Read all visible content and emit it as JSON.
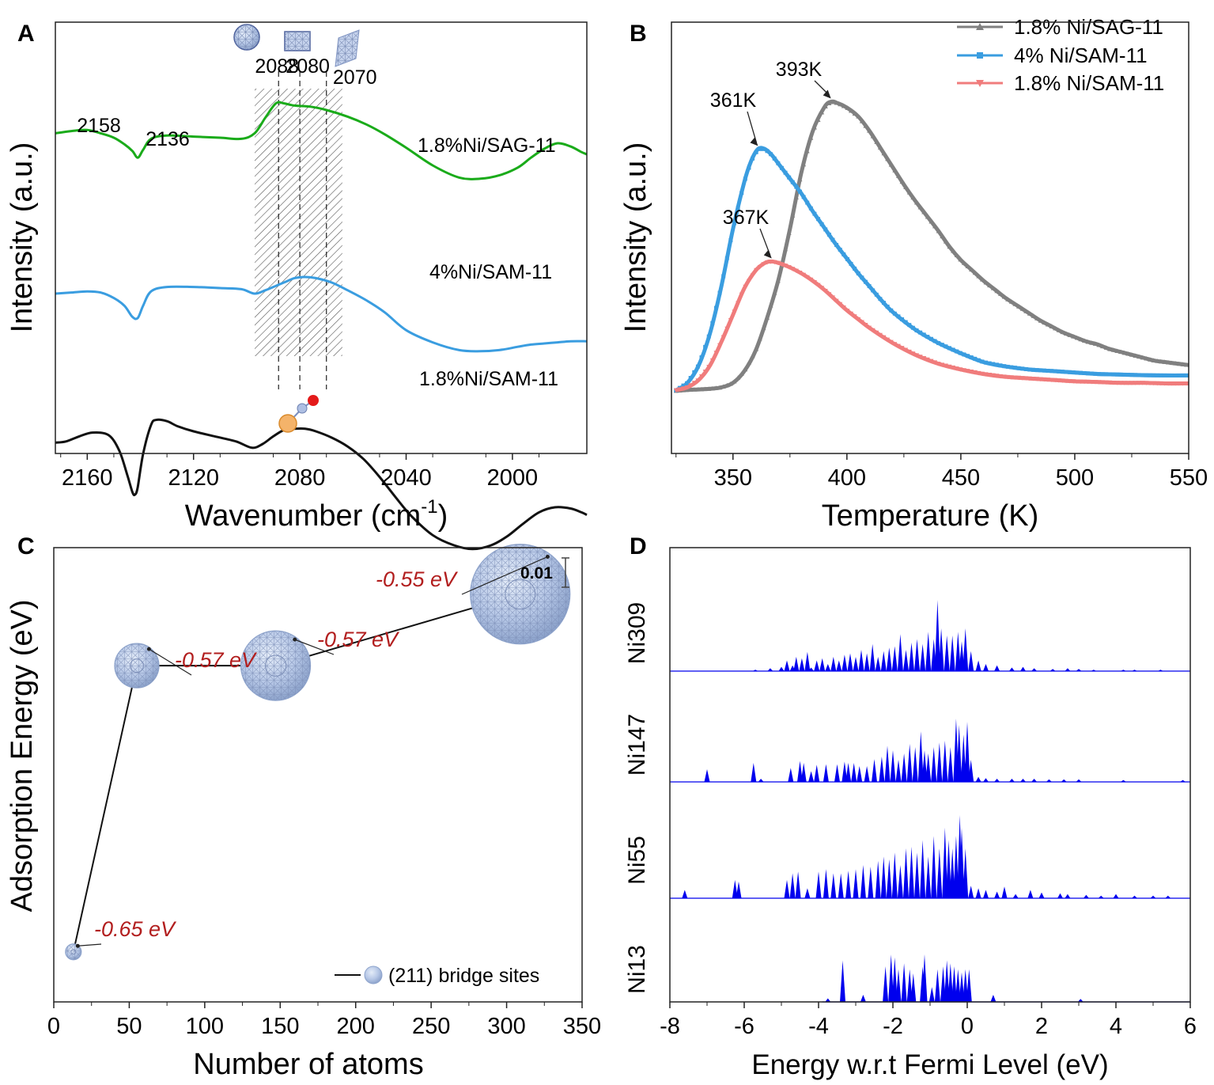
{
  "chart_data": [
    {
      "panel": "A",
      "type": "line",
      "xlabel": "Wavenumber (cm",
      "xlabel_sup": "-1",
      "xlabel_tail": ")",
      "ylabel": "Intensity (a.u.)",
      "xlim": [
        2172,
        1972
      ],
      "x_reversed": true,
      "xticks": [
        2160,
        2120,
        2080,
        2040,
        2000
      ],
      "series": [
        {
          "name": "1.8%Ni/SAG-11",
          "color": "#1aab1a",
          "x": [
            2172,
            2166,
            2160,
            2155,
            2150,
            2146,
            2143,
            2141,
            2139,
            2136,
            2130,
            2120,
            2110,
            2102,
            2097,
            2093,
            2089,
            2086,
            2082,
            2076,
            2070,
            2062,
            2055,
            2048,
            2040,
            2030,
            2020,
            2012,
            2005,
            1998,
            1993,
            1988,
            1983,
            1978,
            1974,
            1972
          ],
          "y": [
            0.64,
            0.66,
            0.67,
            0.64,
            0.6,
            0.54,
            0.48,
            0.42,
            0.49,
            0.59,
            0.62,
            0.61,
            0.6,
            0.59,
            0.64,
            0.78,
            0.91,
            0.91,
            0.89,
            0.88,
            0.85,
            0.79,
            0.72,
            0.63,
            0.51,
            0.35,
            0.24,
            0.23,
            0.26,
            0.33,
            0.42,
            0.5,
            0.55,
            0.52,
            0.47,
            0.45
          ]
        },
        {
          "name": "4%Ni/SAM-11",
          "color": "#3a9de0",
          "x": [
            2172,
            2166,
            2160,
            2155,
            2150,
            2146,
            2143,
            2141,
            2139,
            2136,
            2130,
            2120,
            2110,
            2102,
            2097,
            2093,
            2089,
            2085,
            2082,
            2078,
            2074,
            2068,
            2062,
            2055,
            2048,
            2040,
            2030,
            2020,
            2012,
            2005,
            1998,
            1993,
            1988,
            1983,
            1978,
            1972
          ],
          "y": [
            0.35,
            0.36,
            0.37,
            0.36,
            0.31,
            0.24,
            0.14,
            0.13,
            0.24,
            0.37,
            0.41,
            0.41,
            0.4,
            0.39,
            0.35,
            0.38,
            0.42,
            0.46,
            0.49,
            0.5,
            0.49,
            0.45,
            0.38,
            0.29,
            0.18,
            0.02,
            -0.09,
            -0.16,
            -0.17,
            -0.16,
            -0.13,
            -0.11,
            -0.1,
            -0.09,
            -0.08,
            -0.08
          ]
        },
        {
          "name": "1.8%Ni/SAM-11",
          "color": "#111111",
          "x": [
            2172,
            2168,
            2163,
            2158,
            2152,
            2148,
            2145,
            2143,
            2142,
            2141,
            2139,
            2136,
            2134,
            2130,
            2126,
            2120,
            2112,
            2104,
            2098,
            2094,
            2090,
            2086,
            2082,
            2078,
            2074,
            2068,
            2062,
            2056,
            2050,
            2044,
            2038,
            2030,
            2022,
            2015,
            2008,
            2002,
            1996,
            1990,
            1984,
            1978,
            1974,
            1972
          ],
          "y": [
            -0.09,
            -0.08,
            -0.04,
            -0.01,
            -0.03,
            -0.15,
            -0.34,
            -0.48,
            -0.5,
            -0.44,
            -0.18,
            0.05,
            0.09,
            0.08,
            0.04,
            0.0,
            -0.04,
            -0.08,
            -0.13,
            -0.1,
            -0.04,
            0.01,
            0.02,
            0.02,
            0.0,
            -0.05,
            -0.12,
            -0.22,
            -0.36,
            -0.52,
            -0.67,
            -0.82,
            -0.9,
            -0.93,
            -0.9,
            -0.83,
            -0.73,
            -0.64,
            -0.6,
            -0.61,
            -0.64,
            -0.66
          ]
        }
      ],
      "series_labels": [
        "1.8%Ni/SAG-11",
        "4%Ni/SAM-11",
        "1.8%Ni/SAM-11"
      ],
      "peak_labels": [
        {
          "x": 2158,
          "y": 0.67,
          "text": "2158"
        },
        {
          "x": 2136,
          "y": 0.59,
          "text": "2136"
        }
      ],
      "reference_lines": [
        {
          "x": 2088,
          "text": "2088"
        },
        {
          "x": 2080,
          "text": "2080"
        },
        {
          "x": 2070,
          "text": "2070"
        }
      ],
      "hatched_band": [
        2097,
        2064
      ]
    },
    {
      "panel": "B",
      "type": "scatter",
      "xlabel": "Temperature (K)",
      "ylabel": "Intensity (a.u.)",
      "xlim": [
        323,
        550
      ],
      "xticks": [
        350,
        400,
        450,
        500,
        550
      ],
      "series": [
        {
          "name": "1.8% Ni/SAG-11",
          "color": "#808080",
          "marker": "triangle",
          "x": [
            325,
            330,
            335,
            340,
            345,
            350,
            355,
            360,
            365,
            370,
            375,
            380,
            385,
            390,
            393,
            396,
            400,
            405,
            410,
            415,
            420,
            425,
            430,
            435,
            440,
            445,
            450,
            455,
            460,
            465,
            470,
            475,
            480,
            485,
            490,
            495,
            500,
            505,
            510,
            515,
            520,
            525,
            530,
            535,
            540,
            545,
            550
          ],
          "y": [
            0.003,
            0.006,
            0.008,
            0.01,
            0.015,
            0.03,
            0.07,
            0.14,
            0.25,
            0.38,
            0.55,
            0.74,
            0.88,
            0.96,
            0.98,
            0.975,
            0.96,
            0.93,
            0.88,
            0.82,
            0.76,
            0.7,
            0.645,
            0.595,
            0.545,
            0.49,
            0.445,
            0.41,
            0.375,
            0.345,
            0.315,
            0.29,
            0.265,
            0.24,
            0.22,
            0.2,
            0.185,
            0.17,
            0.16,
            0.145,
            0.135,
            0.125,
            0.115,
            0.105,
            0.1,
            0.095,
            0.09
          ]
        },
        {
          "name": "4% Ni/SAM-11",
          "color": "#3a9de0",
          "marker": "square",
          "x": [
            325,
            330,
            335,
            340,
            345,
            350,
            355,
            358,
            361,
            364,
            367,
            370,
            375,
            380,
            385,
            390,
            395,
            400,
            405,
            410,
            415,
            420,
            430,
            440,
            450,
            460,
            470,
            480,
            490,
            500,
            510,
            520,
            530,
            540,
            550
          ],
          "y": [
            0.005,
            0.03,
            0.09,
            0.2,
            0.36,
            0.55,
            0.71,
            0.78,
            0.82,
            0.82,
            0.8,
            0.77,
            0.72,
            0.67,
            0.61,
            0.555,
            0.5,
            0.45,
            0.4,
            0.355,
            0.31,
            0.27,
            0.21,
            0.165,
            0.13,
            0.1,
            0.085,
            0.075,
            0.07,
            0.065,
            0.06,
            0.058,
            0.056,
            0.055,
            0.055
          ]
        },
        {
          "name": "1.8% Ni/SAM-11",
          "color": "#f07c7c",
          "marker": "triangle-down",
          "x": [
            325,
            330,
            335,
            340,
            345,
            350,
            355,
            360,
            364,
            367,
            370,
            375,
            380,
            385,
            390,
            395,
            400,
            405,
            410,
            420,
            430,
            440,
            450,
            460,
            470,
            480,
            490,
            500,
            510,
            520,
            530,
            540,
            550
          ],
          "y": [
            0.005,
            0.015,
            0.04,
            0.09,
            0.17,
            0.26,
            0.35,
            0.41,
            0.435,
            0.44,
            0.435,
            0.42,
            0.4,
            0.375,
            0.345,
            0.31,
            0.275,
            0.245,
            0.215,
            0.165,
            0.125,
            0.095,
            0.075,
            0.06,
            0.05,
            0.045,
            0.04,
            0.035,
            0.033,
            0.03,
            0.03,
            0.028,
            0.028
          ]
        }
      ],
      "annotations": [
        {
          "text": "393K",
          "x": 393,
          "y": 0.98
        },
        {
          "text": "361K",
          "x": 361,
          "y": 0.82
        },
        {
          "text": "367K",
          "x": 367,
          "y": 0.44
        }
      ],
      "legend_position": "top-right"
    },
    {
      "panel": "C",
      "type": "line",
      "xlabel": "Number of atoms",
      "ylabel": "Adsorption Energy (eV)",
      "xlim": [
        0,
        350
      ],
      "xticks": [
        0,
        50,
        100,
        150,
        200,
        250,
        300,
        350
      ],
      "ylim": [
        -0.664,
        -0.537
      ],
      "x": [
        13,
        55,
        147,
        309
      ],
      "y": [
        -0.65,
        -0.57,
        -0.57,
        -0.55
      ],
      "point_labels": [
        "-0.65 eV",
        "-0.57 eV",
        "-0.57 eV",
        "-0.55 eV"
      ],
      "scale_bar_label": "0.01",
      "legend": "(211) bridge sites",
      "legend_position": "bottom-right"
    },
    {
      "panel": "D",
      "type": "bar",
      "xlabel": "Energy w.r.t Fermi Level (eV)",
      "xlim": [
        -8,
        6
      ],
      "xticks": [
        -8,
        -6,
        -4,
        -2,
        0,
        2,
        4,
        6
      ],
      "color": "#0000ee",
      "series": [
        {
          "name": "Ni309",
          "x": [
            -5.7,
            -5.3,
            -5.0,
            -4.85,
            -4.7,
            -4.6,
            -4.45,
            -4.3,
            -4.2,
            -4.05,
            -3.9,
            -3.75,
            -3.6,
            -3.45,
            -3.3,
            -3.15,
            -3.0,
            -2.85,
            -2.7,
            -2.55,
            -2.4,
            -2.25,
            -2.1,
            -1.95,
            -1.8,
            -1.65,
            -1.5,
            -1.35,
            -1.2,
            -1.05,
            -0.9,
            -0.8,
            -0.7,
            -0.55,
            -0.4,
            -0.25,
            -0.15,
            -0.05,
            0.1,
            0.3,
            0.5,
            0.8,
            1.2,
            1.5,
            1.8,
            2.3,
            2.7,
            3.0,
            3.4,
            4.2,
            4.5,
            5.2
          ],
          "y": [
            0.02,
            0.04,
            0.06,
            0.15,
            0.08,
            0.2,
            0.18,
            0.27,
            0.05,
            0.15,
            0.18,
            0.1,
            0.2,
            0.15,
            0.23,
            0.25,
            0.2,
            0.3,
            0.25,
            0.38,
            0.2,
            0.28,
            0.33,
            0.35,
            0.52,
            0.3,
            0.4,
            0.45,
            0.38,
            0.55,
            0.45,
            1.0,
            0.6,
            0.5,
            0.5,
            0.55,
            0.42,
            0.6,
            0.28,
            0.15,
            0.1,
            0.08,
            0.05,
            0.06,
            0.04,
            0.03,
            0.04,
            0.03,
            0.02,
            0.02,
            0.02,
            0.02
          ]
        },
        {
          "name": "Ni147",
          "x": [
            -7.0,
            -5.75,
            -5.55,
            -4.75,
            -4.5,
            -4.4,
            -4.2,
            -4.05,
            -3.8,
            -3.5,
            -3.3,
            -3.2,
            -3.05,
            -2.9,
            -2.7,
            -2.5,
            -2.3,
            -2.15,
            -2.0,
            -1.85,
            -1.7,
            -1.55,
            -1.4,
            -1.25,
            -1.15,
            -1.05,
            -0.9,
            -0.75,
            -0.6,
            -0.45,
            -0.3,
            -0.22,
            -0.1,
            0.0,
            0.1,
            0.3,
            0.5,
            0.8,
            1.2,
            1.5,
            1.8,
            2.2,
            2.6,
            3.0,
            4.2,
            5.8
          ],
          "y": [
            0.2,
            0.3,
            0.05,
            0.22,
            0.33,
            0.3,
            0.17,
            0.27,
            0.28,
            0.28,
            0.32,
            0.3,
            0.3,
            0.25,
            0.25,
            0.36,
            0.4,
            0.57,
            0.5,
            0.35,
            0.45,
            0.6,
            0.55,
            0.8,
            0.5,
            0.45,
            0.55,
            0.62,
            0.65,
            0.55,
            1.0,
            0.9,
            0.75,
            0.95,
            0.35,
            0.08,
            0.06,
            0.05,
            0.05,
            0.05,
            0.05,
            0.04,
            0.04,
            0.04,
            0.03,
            0.03
          ]
        },
        {
          "name": "Ni55",
          "x": [
            -7.6,
            -6.25,
            -6.15,
            -4.85,
            -4.7,
            -4.55,
            -4.3,
            -4.0,
            -3.8,
            -3.6,
            -3.4,
            -3.2,
            -3.0,
            -2.8,
            -2.6,
            -2.4,
            -2.25,
            -2.1,
            -1.95,
            -1.8,
            -1.65,
            -1.5,
            -1.35,
            -1.2,
            -1.05,
            -0.9,
            -0.75,
            -0.6,
            -0.5,
            -0.4,
            -0.3,
            -0.2,
            -0.15,
            -0.05,
            0.1,
            0.3,
            0.5,
            0.8,
            1.0,
            1.3,
            1.7,
            2.0,
            2.5,
            2.7,
            3.2,
            3.6,
            4.0,
            4.5,
            5.0,
            5.4
          ],
          "y": [
            0.1,
            0.22,
            0.2,
            0.22,
            0.3,
            0.32,
            0.12,
            0.32,
            0.35,
            0.3,
            0.3,
            0.33,
            0.35,
            0.4,
            0.38,
            0.45,
            0.5,
            0.47,
            0.55,
            0.4,
            0.6,
            0.62,
            0.55,
            0.7,
            0.5,
            0.75,
            0.6,
            0.85,
            0.7,
            0.6,
            0.75,
            1.0,
            0.85,
            0.6,
            0.15,
            0.12,
            0.1,
            0.08,
            0.14,
            0.05,
            0.1,
            0.07,
            0.06,
            0.05,
            0.04,
            0.03,
            0.05,
            0.03,
            0.03,
            0.03
          ]
        },
        {
          "name": "Ni13",
          "x": [
            -3.75,
            -3.35,
            -2.8,
            -2.2,
            -2.05,
            -1.95,
            -1.85,
            -1.7,
            -1.55,
            -1.45,
            -1.2,
            -1.15,
            -0.95,
            -0.8,
            -0.65,
            -0.55,
            -0.45,
            -0.35,
            -0.25,
            -0.15,
            -0.05,
            0.05,
            0.7,
            3.05
          ],
          "y": [
            0.06,
            0.7,
            0.12,
            0.6,
            0.8,
            0.75,
            0.55,
            0.65,
            0.55,
            0.48,
            0.6,
            0.8,
            0.25,
            0.55,
            0.6,
            0.7,
            0.65,
            0.6,
            0.55,
            0.5,
            0.55,
            0.55,
            0.12,
            0.05
          ]
        }
      ]
    }
  ],
  "panel_letters": [
    "A",
    "B",
    "C",
    "D"
  ]
}
